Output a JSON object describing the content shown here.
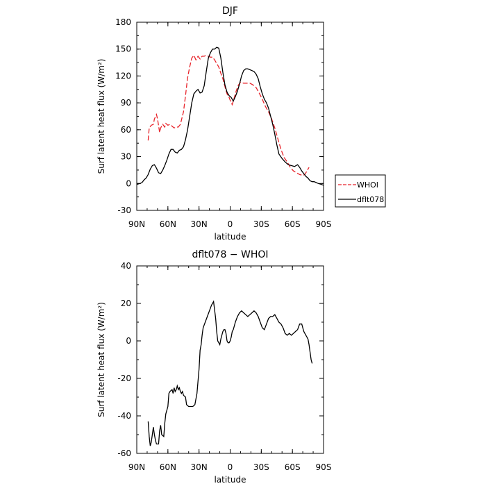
{
  "chart_data": [
    {
      "type": "line",
      "title": "DJF",
      "xlabel": "latitude",
      "ylabel": "Surf latent heat flux (W/m²)",
      "x_tick_labels": [
        "90N",
        "60N",
        "30N",
        "0",
        "30S",
        "60S",
        "90S"
      ],
      "x_tick_values": [
        90,
        60,
        30,
        0,
        -30,
        -60,
        -90
      ],
      "xlim": [
        90,
        -90
      ],
      "ylim": [
        -30,
        180
      ],
      "y_ticks": [
        -30,
        0,
        30,
        60,
        90,
        120,
        150,
        180
      ],
      "legend": {
        "placement": "right, outside plot",
        "entries": [
          "WHOI",
          "dflt078"
        ]
      },
      "series": [
        {
          "name": "WHOI",
          "color": "#e8232a",
          "dash": "dashed",
          "points": [
            [
              79,
              48
            ],
            [
              78,
              62
            ],
            [
              76,
              65
            ],
            [
              74,
              66
            ],
            [
              73,
              72
            ],
            [
              71,
              77
            ],
            [
              70,
              72
            ],
            [
              68,
              57
            ],
            [
              67,
              62
            ],
            [
              65,
              66
            ],
            [
              63,
              63
            ],
            [
              62,
              67
            ],
            [
              60,
              65
            ],
            [
              58,
              66
            ],
            [
              56,
              64
            ],
            [
              54,
              62
            ],
            [
              52,
              63
            ],
            [
              50,
              63
            ],
            [
              48,
              66
            ],
            [
              45,
              80
            ],
            [
              43,
              98
            ],
            [
              41,
              118
            ],
            [
              39,
              130
            ],
            [
              37,
              140
            ],
            [
              35,
              143
            ],
            [
              33,
              138
            ],
            [
              31,
              142
            ],
            [
              29,
              139
            ],
            [
              27,
              142
            ],
            [
              25,
              142
            ],
            [
              23,
              143
            ],
            [
              21,
              142
            ],
            [
              19,
              141
            ],
            [
              17,
              141
            ],
            [
              15,
              138
            ],
            [
              13,
              134
            ],
            [
              11,
              130
            ],
            [
              9,
              123
            ],
            [
              7,
              117
            ],
            [
              5,
              108
            ],
            [
              3,
              100
            ],
            [
              1,
              96
            ],
            [
              -1,
              90
            ],
            [
              -2,
              88
            ],
            [
              -4,
              96
            ],
            [
              -6,
              104
            ],
            [
              -8,
              110
            ],
            [
              -10,
              113
            ],
            [
              -13,
              112
            ],
            [
              -16,
              112
            ],
            [
              -19,
              112
            ],
            [
              -22,
              110
            ],
            [
              -25,
              107
            ],
            [
              -28,
              101
            ],
            [
              -31,
              94
            ],
            [
              -34,
              86
            ],
            [
              -37,
              80
            ],
            [
              -40,
              72
            ],
            [
              -43,
              62
            ],
            [
              -46,
              50
            ],
            [
              -49,
              38
            ],
            [
              -52,
              29
            ],
            [
              -55,
              24
            ],
            [
              -58,
              18
            ],
            [
              -61,
              14
            ],
            [
              -64,
              12
            ],
            [
              -67,
              10
            ],
            [
              -70,
              9
            ],
            [
              -72,
              10
            ],
            [
              -74,
              14
            ],
            [
              -76,
              18
            ]
          ]
        },
        {
          "name": "dflt078",
          "color": "#000000",
          "dash": "solid",
          "points": [
            [
              90,
              -1
            ],
            [
              87,
              0
            ],
            [
              85,
              1
            ],
            [
              83,
              4
            ],
            [
              81,
              6
            ],
            [
              79,
              10
            ],
            [
              77,
              16
            ],
            [
              75,
              20
            ],
            [
              73,
              21
            ],
            [
              71,
              17
            ],
            [
              69,
              12
            ],
            [
              67,
              11
            ],
            [
              65,
              15
            ],
            [
              63,
              20
            ],
            [
              61,
              26
            ],
            [
              59,
              33
            ],
            [
              57,
              38
            ],
            [
              55,
              38
            ],
            [
              53,
              35
            ],
            [
              51,
              34
            ],
            [
              49,
              37
            ],
            [
              47,
              38
            ],
            [
              45,
              41
            ],
            [
              43,
              49
            ],
            [
              41,
              60
            ],
            [
              39,
              75
            ],
            [
              37,
              90
            ],
            [
              35,
              100
            ],
            [
              33,
              103
            ],
            [
              31,
              105
            ],
            [
              29,
              101
            ],
            [
              27,
              102
            ],
            [
              25,
              109
            ],
            [
              23,
              125
            ],
            [
              21,
              140
            ],
            [
              19,
              146
            ],
            [
              17,
              150
            ],
            [
              15,
              150
            ],
            [
              13,
              152
            ],
            [
              11,
              151
            ],
            [
              9,
              140
            ],
            [
              7,
              124
            ],
            [
              5,
              110
            ],
            [
              3,
              102
            ],
            [
              1,
              98
            ],
            [
              -1,
              96
            ],
            [
              -3,
              92
            ],
            [
              -5,
              97
            ],
            [
              -7,
              103
            ],
            [
              -9,
              111
            ],
            [
              -11,
              120
            ],
            [
              -13,
              126
            ],
            [
              -15,
              128
            ],
            [
              -17,
              128
            ],
            [
              -19,
              127
            ],
            [
              -21,
              126
            ],
            [
              -23,
              125
            ],
            [
              -25,
              122
            ],
            [
              -27,
              117
            ],
            [
              -29,
              108
            ],
            [
              -31,
              100
            ],
            [
              -33,
              94
            ],
            [
              -35,
              90
            ],
            [
              -37,
              84
            ],
            [
              -39,
              75
            ],
            [
              -41,
              66
            ],
            [
              -43,
              55
            ],
            [
              -45,
              43
            ],
            [
              -47,
              33
            ],
            [
              -50,
              28
            ],
            [
              -53,
              24
            ],
            [
              -56,
              21
            ],
            [
              -59,
              20
            ],
            [
              -62,
              19
            ],
            [
              -65,
              21
            ],
            [
              -67,
              18
            ],
            [
              -69,
              14
            ],
            [
              -71,
              11
            ],
            [
              -73,
              8
            ],
            [
              -75,
              6
            ],
            [
              -77,
              3
            ],
            [
              -79,
              2
            ],
            [
              -81,
              2
            ],
            [
              -83,
              1
            ],
            [
              -85,
              0
            ],
            [
              -88,
              -1
            ],
            [
              -90,
              -2
            ]
          ]
        }
      ]
    },
    {
      "type": "line",
      "title": "dflt078 − WHOI",
      "xlabel": "latitude",
      "ylabel": "Surf latent heat flux (W/m²)",
      "x_tick_labels": [
        "90N",
        "60N",
        "30N",
        "0",
        "30S",
        "60S",
        "90S"
      ],
      "x_tick_values": [
        90,
        60,
        30,
        0,
        -30,
        -60,
        -90
      ],
      "xlim": [
        90,
        -90
      ],
      "ylim": [
        -60,
        40
      ],
      "y_ticks": [
        -60,
        -40,
        -20,
        0,
        20,
        40
      ],
      "series": [
        {
          "color": "#000000",
          "dash": "solid",
          "points": [
            [
              79,
              -43
            ],
            [
              78,
              -51
            ],
            [
              77,
              -56
            ],
            [
              76,
              -54
            ],
            [
              75,
              -50
            ],
            [
              74,
              -46
            ],
            [
              73,
              -50
            ],
            [
              72,
              -53
            ],
            [
              71,
              -55
            ],
            [
              69,
              -55
            ],
            [
              68,
              -48
            ],
            [
              67,
              -45
            ],
            [
              66,
              -50
            ],
            [
              64,
              -51
            ],
            [
              63,
              -44
            ],
            [
              62,
              -39
            ],
            [
              60,
              -35
            ],
            [
              59,
              -28
            ],
            [
              58,
              -27
            ],
            [
              56,
              -26
            ],
            [
              55,
              -28
            ],
            [
              54,
              -25
            ],
            [
              53,
              -27
            ],
            [
              52,
              -26
            ],
            [
              51,
              -24
            ],
            [
              50,
              -26
            ],
            [
              49,
              -25
            ],
            [
              48,
              -27
            ],
            [
              47,
              -28
            ],
            [
              46,
              -27
            ],
            [
              45,
              -29
            ],
            [
              43,
              -30
            ],
            [
              42,
              -34
            ],
            [
              40,
              -35
            ],
            [
              38,
              -35
            ],
            [
              36,
              -35
            ],
            [
              34,
              -34
            ],
            [
              32,
              -28
            ],
            [
              30,
              -15
            ],
            [
              29,
              -5
            ],
            [
              28,
              -2
            ],
            [
              27,
              3
            ],
            [
              26,
              7
            ],
            [
              24,
              10
            ],
            [
              22,
              13
            ],
            [
              20,
              16
            ],
            [
              18,
              19
            ],
            [
              16,
              21
            ],
            [
              14,
              12
            ],
            [
              13,
              5
            ],
            [
              12,
              0
            ],
            [
              11,
              -1
            ],
            [
              10,
              -2
            ],
            [
              9,
              1
            ],
            [
              8,
              3
            ],
            [
              7,
              5
            ],
            [
              6,
              6
            ],
            [
              5,
              6
            ],
            [
              4,
              4
            ],
            [
              3,
              0
            ],
            [
              2,
              -1
            ],
            [
              1,
              -1
            ],
            [
              0,
              0
            ],
            [
              -1,
              2
            ],
            [
              -2,
              5
            ],
            [
              -3,
              6
            ],
            [
              -5,
              10
            ],
            [
              -7,
              13
            ],
            [
              -9,
              15
            ],
            [
              -11,
              16
            ],
            [
              -13,
              15
            ],
            [
              -15,
              14
            ],
            [
              -17,
              13
            ],
            [
              -19,
              14
            ],
            [
              -21,
              15
            ],
            [
              -23,
              16
            ],
            [
              -25,
              15
            ],
            [
              -27,
              13
            ],
            [
              -29,
              10
            ],
            [
              -31,
              7
            ],
            [
              -33,
              6
            ],
            [
              -35,
              9
            ],
            [
              -37,
              12
            ],
            [
              -39,
              13
            ],
            [
              -41,
              13
            ],
            [
              -43,
              14
            ],
            [
              -45,
              12
            ],
            [
              -47,
              10
            ],
            [
              -49,
              9
            ],
            [
              -51,
              7
            ],
            [
              -53,
              4
            ],
            [
              -55,
              3
            ],
            [
              -57,
              4
            ],
            [
              -59,
              3
            ],
            [
              -61,
              4
            ],
            [
              -63,
              5
            ],
            [
              -65,
              6
            ],
            [
              -67,
              9
            ],
            [
              -69,
              9
            ],
            [
              -71,
              5
            ],
            [
              -73,
              3
            ],
            [
              -75,
              1
            ],
            [
              -76,
              -2
            ],
            [
              -77,
              -6
            ],
            [
              -78,
              -10
            ],
            [
              -79,
              -12
            ]
          ]
        }
      ]
    }
  ]
}
